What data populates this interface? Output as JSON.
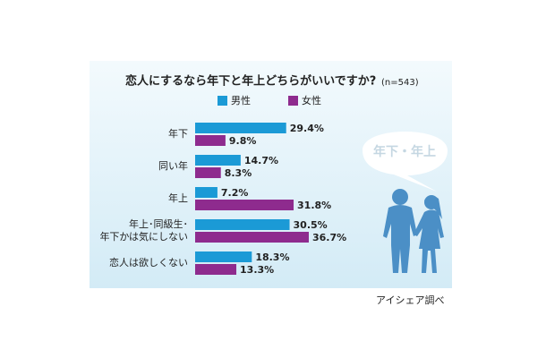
{
  "chart_data": {
    "type": "bar",
    "orientation": "horizontal",
    "title": "恋人にするなら年下と年上どちらがいいですか?",
    "subtitle": "(n=543)",
    "categories": [
      "年下",
      "同い年",
      "年上",
      "年上･同級生･\n年下かは気にしない",
      "恋人は欲しくない"
    ],
    "series": [
      {
        "name": "男性",
        "color": "#1b9ad6",
        "values": [
          29.4,
          14.7,
          7.2,
          30.5,
          18.3
        ],
        "value_labels": [
          "29.4%",
          "14.7%",
          "7.2%",
          "30.5%",
          "18.3%"
        ]
      },
      {
        "name": "女性",
        "color": "#8e2b8e",
        "values": [
          9.8,
          8.3,
          31.8,
          36.7,
          13.3
        ],
        "value_labels": [
          "9.8%",
          "8.3%",
          "31.8%",
          "36.7%",
          "13.3%"
        ]
      }
    ],
    "bubble_text": "年下・年上",
    "source": "アイシェア調べ"
  }
}
